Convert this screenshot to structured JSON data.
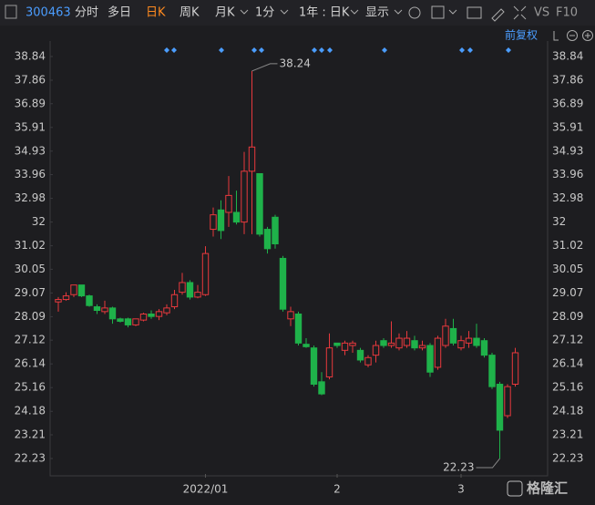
{
  "toolbar": {
    "code": "300463",
    "tabs": [
      "分时",
      "多日",
      "日K",
      "周K",
      "月K",
      "1分",
      "1年 : 日K",
      "显示"
    ],
    "right": [
      "VS",
      "F10"
    ],
    "adjust": "前复权"
  },
  "chart_data": {
    "type": "candlestick",
    "categories": [
      null,
      null,
      null,
      null,
      null,
      null,
      null,
      null,
      null,
      null,
      null,
      null,
      null,
      null,
      null,
      null,
      null,
      null,
      null,
      "2022/01",
      null,
      null,
      null,
      null,
      null,
      null,
      null,
      null,
      null,
      null,
      null,
      null,
      null,
      null,
      null,
      null,
      "2",
      null,
      null,
      null,
      null,
      null,
      null,
      null,
      null,
      null,
      null,
      null,
      null,
      null,
      null,
      null,
      "3",
      null,
      null,
      null,
      null,
      null,
      null,
      null
    ],
    "open": [
      28.7,
      28.8,
      29.0,
      29.4,
      28.95,
      28.5,
      28.3,
      28.45,
      28.0,
      28.0,
      27.75,
      27.95,
      28.2,
      28.1,
      28.25,
      28.5,
      29.1,
      29.5,
      28.9,
      29.0,
      31.7,
      32.5,
      32.4,
      32.4,
      32.0,
      34.1,
      34.0,
      31.7,
      32.2,
      30.5,
      28.0,
      28.2,
      26.95,
      26.8,
      25.4,
      25.6,
      27.0,
      26.7,
      26.9,
      26.7,
      26.1,
      26.5,
      27.1,
      26.9,
      26.8,
      26.9,
      27.1,
      26.8,
      26.9,
      26.0,
      26.9,
      27.6,
      26.8,
      27.0,
      27.2,
      27.1,
      26.5,
      25.3,
      24.0,
      25.3
    ],
    "high": [
      28.9,
      29.1,
      29.4,
      29.4,
      29.0,
      28.6,
      28.75,
      28.5,
      28.05,
      28.05,
      28.0,
      28.25,
      28.35,
      28.4,
      28.6,
      29.2,
      29.9,
      29.6,
      29.4,
      31.0,
      32.6,
      32.9,
      33.9,
      33.3,
      34.9,
      38.24,
      34.0,
      31.8,
      32.3,
      30.6,
      28.5,
      28.3,
      27.2,
      26.9,
      25.8,
      27.4,
      27.0,
      27.1,
      27.1,
      26.8,
      26.5,
      27.1,
      27.2,
      27.9,
      27.4,
      27.5,
      27.3,
      27.1,
      27.0,
      27.3,
      28.0,
      28.0,
      27.3,
      27.5,
      27.8,
      27.2,
      26.6,
      25.4,
      25.3,
      26.8
    ],
    "low": [
      28.3,
      28.75,
      28.9,
      28.9,
      28.5,
      28.2,
      28.2,
      27.8,
      27.85,
      27.65,
      27.7,
      27.9,
      28.0,
      27.95,
      28.15,
      28.4,
      29.0,
      28.8,
      28.85,
      28.95,
      31.4,
      31.3,
      31.8,
      31.9,
      31.5,
      31.5,
      31.4,
      30.7,
      30.9,
      28.3,
      27.7,
      26.9,
      26.8,
      25.2,
      24.85,
      25.5,
      26.8,
      26.5,
      26.6,
      26.2,
      26.0,
      26.2,
      26.8,
      26.8,
      26.7,
      26.8,
      26.7,
      26.7,
      25.6,
      25.9,
      26.8,
      26.9,
      26.7,
      26.8,
      26.8,
      26.4,
      25.1,
      22.23,
      23.9,
      25.2
    ],
    "close": [
      28.8,
      28.95,
      29.4,
      28.95,
      28.55,
      28.35,
      28.45,
      28.0,
      27.9,
      27.75,
      28.0,
      28.2,
      28.1,
      28.3,
      28.45,
      29.0,
      29.5,
      28.9,
      29.1,
      30.7,
      32.3,
      31.65,
      33.1,
      32.0,
      34.1,
      35.1,
      31.5,
      30.9,
      31.1,
      28.4,
      28.3,
      27.0,
      26.85,
      25.3,
      24.9,
      26.8,
      26.9,
      27.0,
      27.0,
      26.3,
      26.4,
      26.9,
      26.9,
      27.0,
      27.2,
      27.2,
      26.8,
      26.9,
      25.8,
      27.2,
      27.7,
      27.0,
      27.1,
      27.2,
      26.9,
      26.5,
      25.2,
      23.4,
      25.2,
      26.6
    ],
    "up_color": "#e8393d",
    "down_color": "#1fb24a",
    "ylim": [
      21.59,
      39.48
    ],
    "yticks": [
      38.84,
      37.86,
      36.89,
      35.91,
      34.93,
      33.96,
      32.98,
      32.0,
      31.02,
      30.05,
      29.07,
      28.09,
      27.12,
      26.14,
      25.16,
      24.18,
      23.21,
      22.23
    ],
    "grid": false
  }
}
